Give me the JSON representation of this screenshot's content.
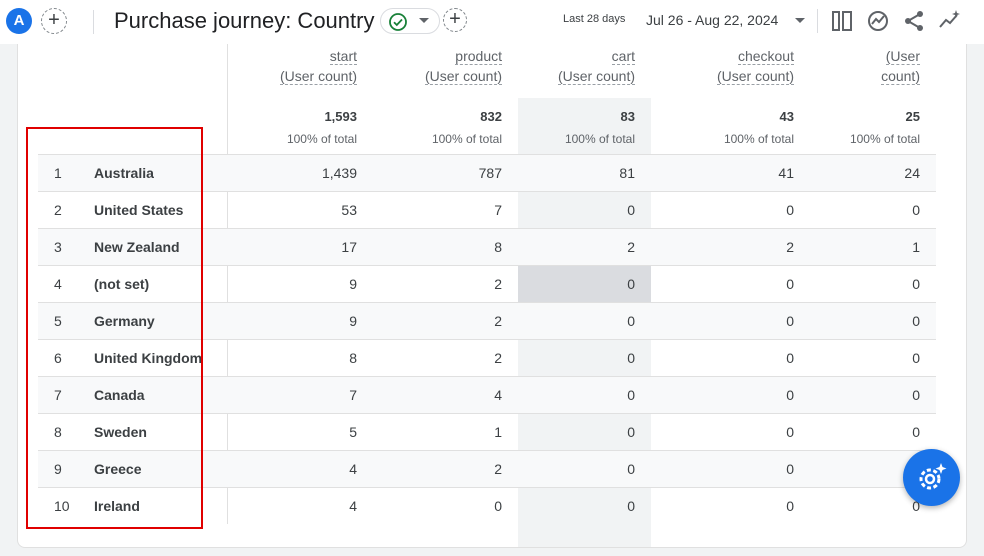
{
  "header": {
    "avatar_letter": "A",
    "title": "Purchase journey: Country",
    "date_range_label": "Last 28 days",
    "date_range_value": "Jul 26 - Aug 22, 2024"
  },
  "table": {
    "columns": [
      {
        "line1": "start",
        "line2": "(User count)",
        "total": "1,593",
        "pct": "100% of total"
      },
      {
        "line1": "product",
        "line2": "(User count)",
        "total": "832",
        "pct": "100% of total"
      },
      {
        "line1": "cart",
        "line2": "(User count)",
        "total": "83",
        "pct": "100% of total"
      },
      {
        "line1": "checkout",
        "line2": "(User count)",
        "total": "43",
        "pct": "100% of total"
      },
      {
        "line1": "(User",
        "line2": "count)",
        "total": "25",
        "pct": "100% of total"
      }
    ],
    "rows": [
      {
        "rank": "1",
        "country": "Australia",
        "values": [
          "1,439",
          "787",
          "81",
          "41",
          "24"
        ]
      },
      {
        "rank": "2",
        "country": "United States",
        "values": [
          "53",
          "7",
          "0",
          "0",
          "0"
        ]
      },
      {
        "rank": "3",
        "country": "New Zealand",
        "values": [
          "17",
          "8",
          "2",
          "2",
          "1"
        ]
      },
      {
        "rank": "4",
        "country": "(not set)",
        "values": [
          "9",
          "2",
          "0",
          "0",
          "0"
        ]
      },
      {
        "rank": "5",
        "country": "Germany",
        "values": [
          "9",
          "2",
          "0",
          "0",
          "0"
        ]
      },
      {
        "rank": "6",
        "country": "United Kingdom",
        "values": [
          "8",
          "2",
          "0",
          "0",
          "0"
        ]
      },
      {
        "rank": "7",
        "country": "Canada",
        "values": [
          "7",
          "4",
          "0",
          "0",
          "0"
        ]
      },
      {
        "rank": "8",
        "country": "Sweden",
        "values": [
          "5",
          "1",
          "0",
          "0",
          "0"
        ]
      },
      {
        "rank": "9",
        "country": "Greece",
        "values": [
          "4",
          "2",
          "0",
          "0",
          "0"
        ]
      },
      {
        "rank": "10",
        "country": "Ireland",
        "values": [
          "4",
          "0",
          "0",
          "0",
          "0"
        ]
      }
    ]
  },
  "icons": {
    "add": "plus-circle-icon",
    "status": "check-circle-icon",
    "compare": "compare-columns-icon",
    "insights": "insights-icon",
    "share": "share-icon",
    "explore": "sparkline-icon",
    "fab": "gear-sparkle-icon"
  },
  "colors": {
    "accent": "#1a73e8",
    "status_ok": "#188038",
    "annotation": "#e00000"
  }
}
